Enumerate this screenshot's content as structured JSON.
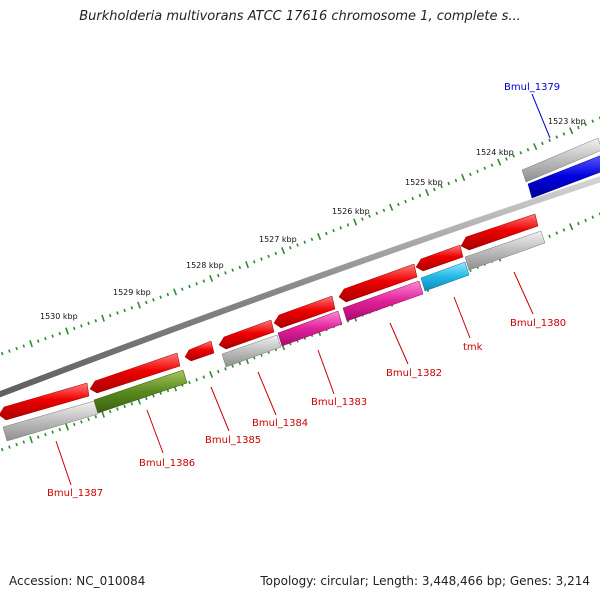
{
  "title": "Burkholderia multivorans ATCC 17616 chromosome 1, complete s...",
  "footer": {
    "accession": "Accession: NC_010084",
    "summary": "Topology: circular; Length: 3,448,466 bp; Genes: 3,214"
  },
  "colors": {
    "backbone": "#8a8a8a",
    "tick": "#2e8b2e",
    "label_default": "#cc0000",
    "label_highlight": "#0000cc"
  },
  "scale_labels": [
    "1523 kbp",
    "1524 kbp",
    "1525 kbp",
    "1526 kbp",
    "1527 kbp",
    "1528 kbp",
    "1529 kbp",
    "1530 kbp"
  ],
  "cds_features": [
    "red-1379",
    "red-1380",
    "red-tmk",
    "red-1382",
    "red-1383",
    "red-1384",
    "red-1385",
    "red-1386",
    "red-1387"
  ],
  "gene_features": [
    {
      "label": "Bmul_1379",
      "color": "#0000dd",
      "label_color": "#0000cc"
    },
    {
      "label": "Bmul_1380",
      "color": "#aaaaaa",
      "label_color": "#cc0000"
    },
    {
      "label": "tmk",
      "color": "#22b8e8",
      "label_color": "#cc0000"
    },
    {
      "label": "Bmul_1382",
      "color": "#e0209a",
      "label_color": "#cc0000"
    },
    {
      "label": "Bmul_1383",
      "color": "#e0209a",
      "label_color": "#cc0000"
    },
    {
      "label": "Bmul_1384",
      "color": "#aaaaaa",
      "label_color": "#cc0000"
    },
    {
      "label": "Bmul_1385",
      "color": "#dd0000",
      "label_color": "#cc0000"
    },
    {
      "label": "Bmul_1386",
      "color": "#5a8a1e",
      "label_color": "#cc0000"
    },
    {
      "label": "Bmul_1387",
      "color": "#aaaaaa",
      "label_color": "#cc0000"
    }
  ]
}
